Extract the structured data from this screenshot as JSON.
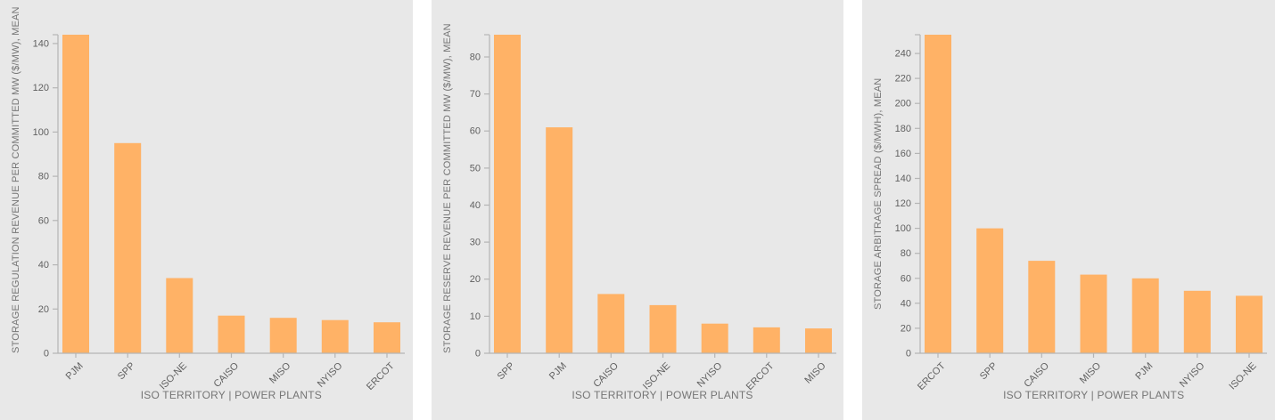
{
  "colors": {
    "page_background": "#ffffff",
    "panel_background": "#e8e8e8",
    "bar": "#ffb266",
    "axis": "#b5b5b5",
    "tick_text": "#616161",
    "axis_title_text": "#757575"
  },
  "chart_data": [
    {
      "type": "bar",
      "title": "",
      "xlabel": "ISO TERRITORY | POWER PLANTS",
      "ylabel": "STORAGE REGULATION REVENUE PER COMMITTED MW ($/MW), MEAN",
      "categories": [
        "PJM",
        "SPP",
        "ISO-NE",
        "CAISO",
        "MISO",
        "NYISO",
        "ERCOT"
      ],
      "values": [
        144,
        95,
        34,
        17,
        16,
        15,
        14
      ],
      "ylim": [
        0,
        144
      ],
      "yticks": [
        0,
        20,
        40,
        60,
        80,
        100,
        120,
        140
      ],
      "grid": false,
      "legend": "none"
    },
    {
      "type": "bar",
      "title": "",
      "xlabel": "ISO TERRITORY | POWER PLANTS",
      "ylabel": "STORAGE RESERVE REVENUE PER COMMITTED MW ($/MW), MEAN",
      "categories": [
        "SPP",
        "PJM",
        "CAISO",
        "ISO-NE",
        "NYISO",
        "ERCOT",
        "MISO"
      ],
      "values": [
        86,
        61,
        16,
        13,
        8,
        7,
        6.7
      ],
      "ylim": [
        0,
        86
      ],
      "yticks": [
        0,
        10,
        20,
        30,
        40,
        50,
        60,
        70,
        80
      ],
      "grid": false,
      "legend": "none"
    },
    {
      "type": "bar",
      "title": "",
      "xlabel": "ISO TERRITORY | POWER PLANTS",
      "ylabel": "STORAGE ARBITRAGE SPREAD ($/MWH), MEAN",
      "categories": [
        "ERCOT",
        "SPP",
        "CAISO",
        "MISO",
        "PJM",
        "NYISO",
        "ISO-NE"
      ],
      "values": [
        255,
        100,
        74,
        63,
        60,
        50,
        46
      ],
      "ylim": [
        0,
        255
      ],
      "yticks": [
        0,
        20,
        40,
        60,
        80,
        100,
        120,
        140,
        160,
        180,
        200,
        220,
        240
      ],
      "grid": false,
      "legend": "none"
    }
  ]
}
